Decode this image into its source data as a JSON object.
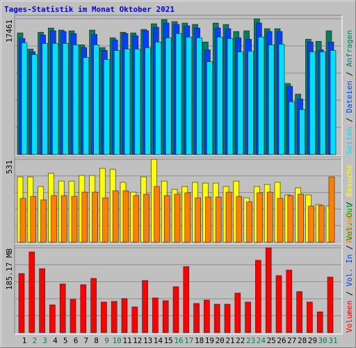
{
  "chart_data": {
    "type": "bar",
    "title": "Tages-Statistik im Monat Oktober 2021",
    "categories": [
      "1",
      "2",
      "3",
      "4",
      "5",
      "6",
      "7",
      "8",
      "9",
      "10",
      "11",
      "12",
      "13",
      "14",
      "15",
      "16",
      "17",
      "18",
      "19",
      "20",
      "21",
      "22",
      "23",
      "24",
      "25",
      "26",
      "27",
      "28",
      "29",
      "30",
      "31"
    ],
    "category_colors": [
      "#000000",
      "#00805c",
      "#00805c",
      "#000000",
      "#000000",
      "#000000",
      "#000000",
      "#000000",
      "#00805c",
      "#00805c",
      "#000000",
      "#000000",
      "#000000",
      "#000000",
      "#000000",
      "#00805c",
      "#00805c",
      "#000000",
      "#000000",
      "#000000",
      "#000000",
      "#000000",
      "#00805c",
      "#00805c",
      "#000000",
      "#000000",
      "#000000",
      "#000000",
      "#000000",
      "#00805c",
      "#00805c"
    ],
    "legend_separator": " / ",
    "panels": [
      {
        "ylim": [
          0,
          17461
        ],
        "yticks": [
          17461
        ],
        "series": [
          {
            "name": "Seiten",
            "color": "#00e0ff",
            "values": [
              14380,
              12850,
              14290,
              14290,
              14290,
              14110,
              12480,
              14110,
              12210,
              13390,
              13570,
              13570,
              13750,
              14480,
              15020,
              15560,
              15110,
              15020,
              11940,
              15110,
              14930,
              13210,
              13300,
              15110,
              14110,
              14200,
              6790,
              5790,
              13210,
              13210,
              13390
            ]
          },
          {
            "name": "Dateien",
            "color": "#0040ff",
            "values": [
              14930,
              13210,
              15380,
              15920,
              15830,
              15560,
              13750,
              15470,
              13390,
              14750,
              15560,
              15290,
              15920,
              16380,
              16920,
              16740,
              16560,
              16280,
              13480,
              16280,
              16190,
              15020,
              14840,
              16920,
              15830,
              15830,
              8780,
              7150,
              14480,
              13480,
              14480
            ]
          },
          {
            "name": "Anfragen",
            "color": "#00805c",
            "values": [
              15650,
              13570,
              15740,
              16280,
              16010,
              15920,
              14110,
              16010,
              13750,
              15020,
              15740,
              15650,
              16100,
              16830,
              17370,
              17100,
              16920,
              16740,
              14480,
              16920,
              16740,
              15830,
              15920,
              17461,
              16190,
              16190,
              9140,
              7780,
              14840,
              14570,
              15920
            ]
          }
        ]
      },
      {
        "ylim": [
          0,
          531
        ],
        "yticks": [
          531
        ],
        "series": [
          {
            "name": "Rechner",
            "color": "#ff8000",
            "values": [
              281,
              294,
              272,
              299,
              299,
              294,
              321,
              321,
              285,
              330,
              330,
              299,
              308,
              357,
              299,
              308,
              317,
              285,
              290,
              290,
              321,
              294,
              259,
              317,
              321,
              281,
              299,
              308,
              232,
              236,
              419
            ]
          },
          {
            "name": "Besuche",
            "color": "#ffff00",
            "values": [
              419,
              419,
              357,
              442,
              392,
              392,
              428,
              428,
              473,
              468,
              384,
              321,
              419,
              531,
              392,
              339,
              357,
              384,
              379,
              379,
              357,
              392,
              285,
              357,
              370,
              384,
              303,
              348,
              303,
              241,
              232
            ]
          }
        ]
      },
      {
        "ylim": [
          0,
          185.17
        ],
        "yticks": [
          {
            "value": 185.17,
            "label": "185.17 MB"
          }
        ],
        "series": [
          {
            "name": "Volumen",
            "color": "#ff0000",
            "values": [
              129.0,
              176.1,
              139.7,
              60.7,
              106.3,
              72.9,
              104.7,
              118.4,
              66.8,
              68.3,
              74.4,
              56.2,
              113.9,
              75.9,
              69.8,
              100.2,
              144.2,
              63.8,
              71.3,
              62.2,
              62.2,
              86.5,
              66.8,
              157.9,
              185.17,
              124.5,
              136.6,
              89.6,
              66.8,
              45.5,
              121.4
            ]
          },
          {
            "name": "Vol. In",
            "color": "#0040ff"
          },
          {
            "name": "Vol. Out",
            "color": "#00a000"
          }
        ]
      }
    ]
  }
}
